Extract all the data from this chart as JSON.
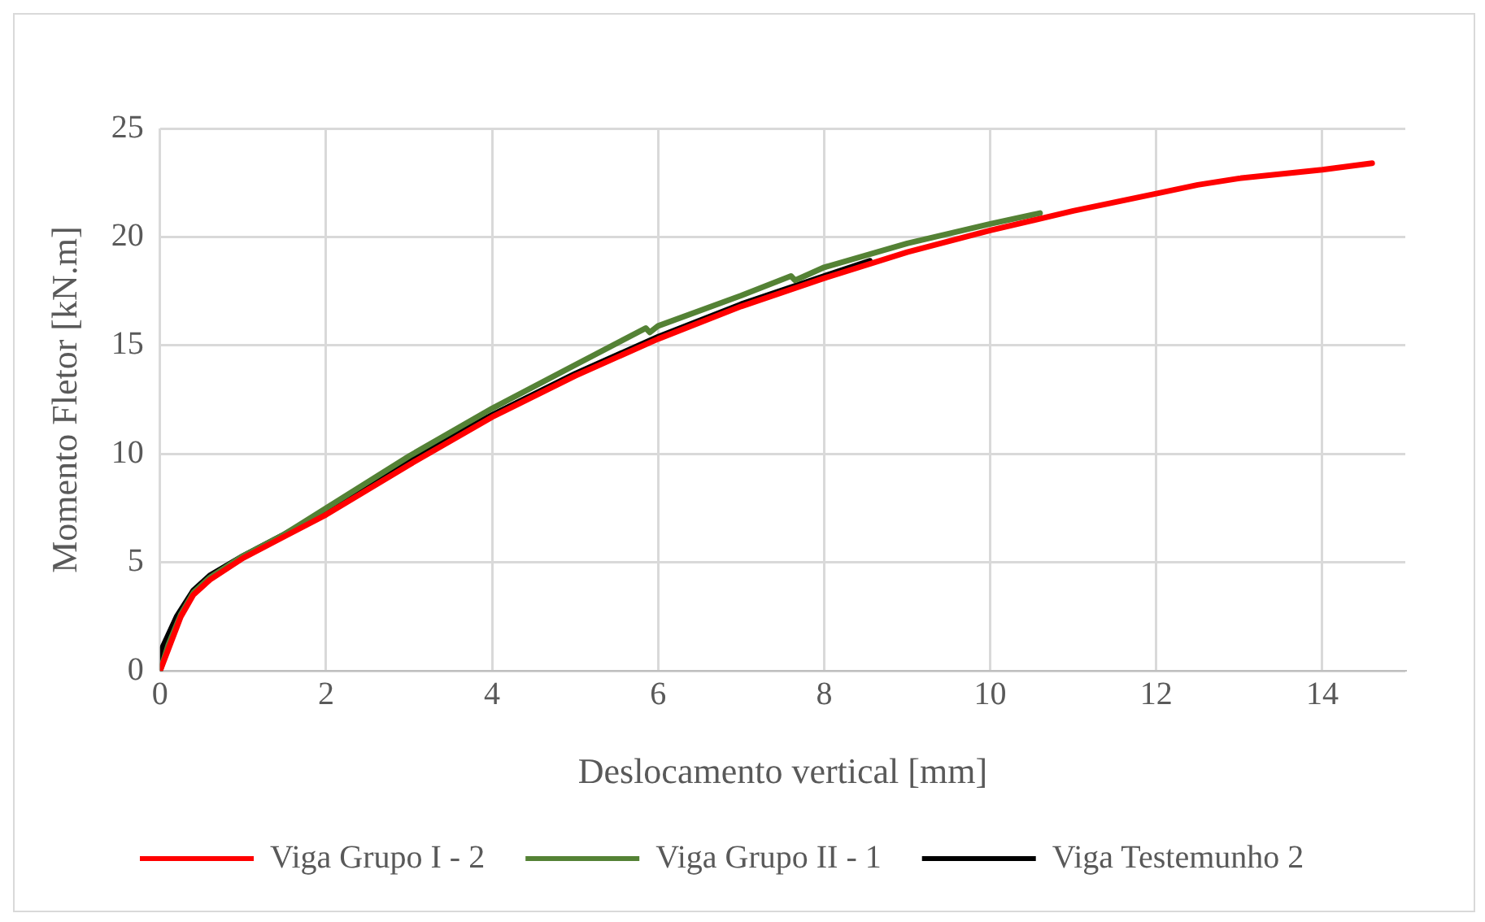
{
  "chart_data": {
    "type": "line",
    "xlabel": "Deslocamento vertical [mm]",
    "ylabel": "Momento Fletor [kN.m]",
    "xlim": [
      0,
      15
    ],
    "xticks": [
      0,
      2,
      4,
      6,
      8,
      10,
      12,
      14
    ],
    "ylim": [
      0,
      25
    ],
    "yticks": [
      0,
      5,
      10,
      15,
      20,
      25
    ],
    "grid": true,
    "legend": "bottom",
    "marker": "none",
    "line_style": "solid",
    "series": [
      {
        "name": "Viga Grupo I - 2",
        "color": "#ff0000",
        "x": [
          0,
          0.1,
          0.25,
          0.4,
          0.6,
          1,
          1.5,
          2,
          3,
          4,
          5,
          6,
          7,
          8,
          9,
          10,
          11,
          12,
          12.5,
          13,
          14,
          14.6
        ],
        "values": [
          0,
          1,
          2.5,
          3.5,
          4.2,
          5.2,
          6.2,
          7.2,
          9.5,
          11.7,
          13.6,
          15.3,
          16.8,
          18.1,
          19.3,
          20.3,
          21.2,
          22,
          22.4,
          22.7,
          23.1,
          23.4
        ]
      },
      {
        "name": "Viga Grupo II - 1",
        "color": "#548235",
        "x": [
          0,
          0.1,
          0.25,
          0.4,
          0.6,
          1,
          1.5,
          2,
          3,
          4,
          5,
          5.85,
          5.9,
          6,
          7,
          7.6,
          7.65,
          8,
          9,
          10,
          10.6
        ],
        "values": [
          0,
          1.2,
          2.6,
          3.6,
          4.3,
          5.3,
          6.3,
          7.5,
          9.9,
          12.1,
          14.1,
          15.8,
          15.6,
          15.9,
          17.3,
          18.2,
          18,
          18.6,
          19.7,
          20.6,
          21.1
        ]
      },
      {
        "name": "Viga Testemunho 2",
        "color": "#000000",
        "x": [
          0,
          0.02,
          0.2,
          0.4,
          0.6,
          1,
          1.5,
          2,
          3,
          4,
          5,
          6,
          7,
          8,
          8.55
        ],
        "values": [
          0,
          1,
          2.5,
          3.7,
          4.4,
          5.3,
          6.3,
          7.4,
          9.7,
          11.8,
          13.7,
          15.4,
          16.9,
          18.2,
          18.9
        ]
      }
    ]
  }
}
